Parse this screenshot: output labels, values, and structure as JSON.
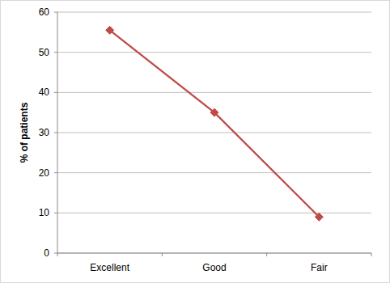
{
  "chart_data": {
    "type": "line",
    "y_label": "% of patients",
    "categories": [
      "Excellent",
      "Good",
      "Fair"
    ],
    "values": [
      55.5,
      35,
      9
    ],
    "color": "#be4b48",
    "marker": "diamond",
    "line_style": "solid",
    "ylim": [
      0,
      60
    ],
    "yticks": [
      0,
      10,
      20,
      30,
      40,
      50,
      60
    ],
    "grid": true
  }
}
